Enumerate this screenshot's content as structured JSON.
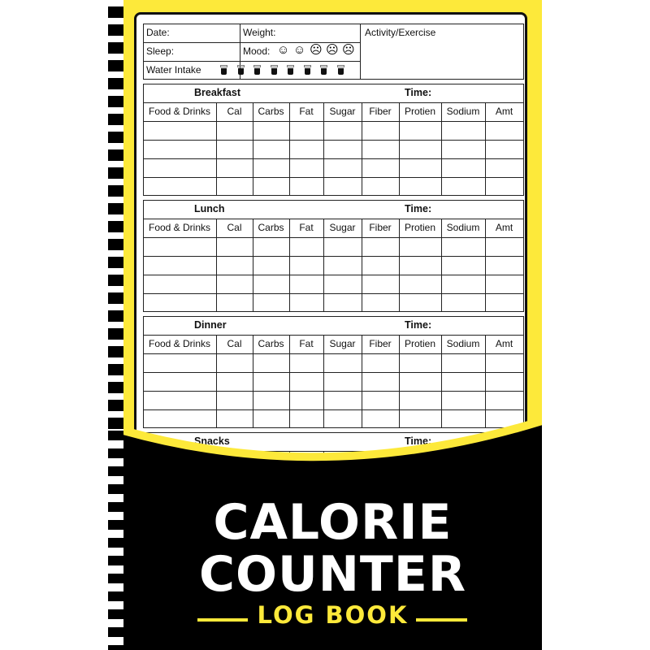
{
  "colors": {
    "accent": "#fde93a",
    "dark": "#000000",
    "page": "#ffffff"
  },
  "daily": {
    "date": "Date:",
    "weight": "Weight:",
    "activity": "Activity/Exercise",
    "sleep": "Sleep:",
    "mood": "Mood:",
    "water": "Water Intake",
    "mood_icons": [
      "very-happy-face-icon",
      "neutral-face-icon",
      "slightly-sad-face-icon",
      "sad-face-icon",
      "very-sad-face-icon"
    ],
    "water_glasses": 8
  },
  "columns": [
    "Food & Drinks",
    "Cal",
    "Carbs",
    "Fat",
    "Sugar",
    "Fiber",
    "Protien",
    "Sodium",
    "Amt"
  ],
  "meals": [
    {
      "name": "Breakfast",
      "time": "Time:"
    },
    {
      "name": "Lunch",
      "time": "Time:"
    },
    {
      "name": "Dinner",
      "time": "Time:"
    },
    {
      "name": "Snacks",
      "time": "Time:"
    }
  ],
  "cover": {
    "title_line1": "CALORIE",
    "title_line2": "COUNTER",
    "subtitle": "LOG BOOK"
  }
}
